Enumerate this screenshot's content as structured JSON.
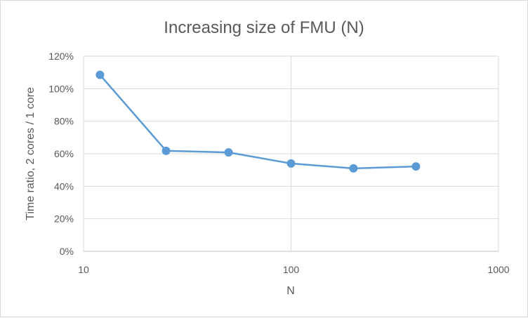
{
  "chart_data": {
    "type": "scatter",
    "title": "Increasing size of FMU (N)",
    "xlabel": "N",
    "ylabel": "Time ratio, 2 cores / 1 core",
    "x_scale": "log",
    "xlim": [
      10,
      1000
    ],
    "ylim": [
      0,
      1.2
    ],
    "x_ticks": [
      "10",
      "100",
      "1000"
    ],
    "y_ticks": [
      "0%",
      "20%",
      "40%",
      "60%",
      "80%",
      "100%",
      "120%"
    ],
    "grid": true,
    "series": [
      {
        "x": [
          12,
          25,
          50,
          100,
          200,
          400
        ],
        "y": [
          1.085,
          0.618,
          0.608,
          0.54,
          0.51,
          0.522
        ],
        "color": "#5b9bd5",
        "markers": true,
        "line": true
      }
    ]
  }
}
